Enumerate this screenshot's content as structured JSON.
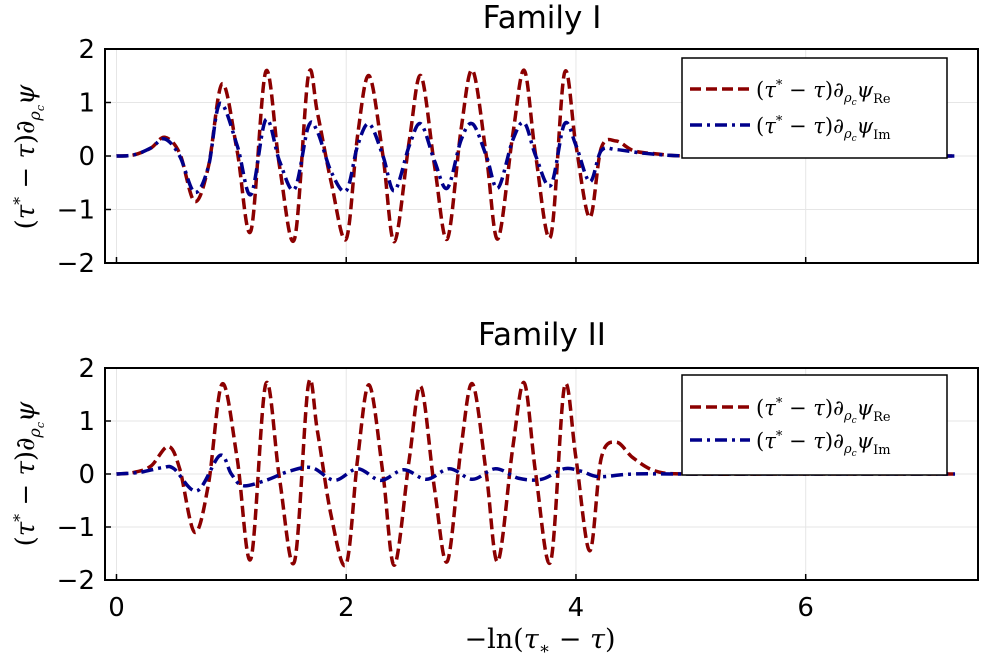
{
  "colors": {
    "re": "#8b0000",
    "im": "#00008b",
    "grid": "#e6e6e6"
  },
  "xlabel": "−ln(τ∗ − τ)",
  "chart_data": [
    {
      "type": "line",
      "title": "Family I",
      "ylabel": "(τ* − τ)∂ρcψ",
      "xlim": [
        -0.1,
        7.5
      ],
      "ylim": [
        -2,
        2
      ],
      "xticks": [
        0,
        2,
        4,
        6
      ],
      "yticks": [
        -2,
        -1,
        0,
        1,
        2
      ],
      "grid": true,
      "legend": "top-right",
      "series": [
        {
          "name": "(τ* − τ)∂ρcψRe",
          "style": "dashed",
          "x": [
            0.0,
            0.15,
            0.3,
            0.42,
            0.55,
            0.68,
            0.8,
            0.92,
            1.05,
            1.17,
            1.3,
            1.42,
            1.55,
            1.67,
            1.75,
            1.87,
            2.0,
            2.1,
            2.2,
            2.32,
            2.42,
            2.55,
            2.65,
            2.77,
            2.88,
            3.0,
            3.1,
            3.22,
            3.32,
            3.45,
            3.55,
            3.65,
            3.78,
            3.9,
            4.0,
            4.12,
            4.22,
            4.35,
            4.5,
            4.7,
            5.0,
            6.0,
            7.3
          ],
          "values": [
            0.0,
            0.02,
            0.15,
            0.35,
            0.05,
            -0.85,
            -0.2,
            1.35,
            0.1,
            -1.4,
            1.58,
            -0.2,
            -1.55,
            1.5,
            0.8,
            -0.5,
            -1.55,
            0.4,
            1.5,
            0.0,
            -1.6,
            0.3,
            1.5,
            -0.2,
            -1.55,
            0.5,
            1.6,
            0.0,
            -1.55,
            0.4,
            1.6,
            0.0,
            -1.5,
            1.55,
            0.2,
            -1.15,
            0.15,
            0.28,
            0.1,
            0.04,
            0.0,
            0.0,
            0.0
          ]
        },
        {
          "name": "(τ* − τ)∂ρcψIm",
          "style": "dashdot",
          "x": [
            0.0,
            0.15,
            0.3,
            0.42,
            0.55,
            0.68,
            0.8,
            0.9,
            1.05,
            1.17,
            1.3,
            1.42,
            1.55,
            1.67,
            1.75,
            1.87,
            2.0,
            2.1,
            2.2,
            2.32,
            2.42,
            2.55,
            2.65,
            2.77,
            2.88,
            3.0,
            3.1,
            3.22,
            3.32,
            3.45,
            3.55,
            3.65,
            3.78,
            3.9,
            4.0,
            4.12,
            4.22,
            4.35,
            4.6,
            5.0,
            6.0,
            7.3
          ],
          "values": [
            0.0,
            0.02,
            0.15,
            0.32,
            0.0,
            -0.68,
            -0.2,
            0.98,
            0.2,
            -0.72,
            0.68,
            -0.1,
            -0.62,
            0.55,
            0.45,
            -0.3,
            -0.65,
            0.2,
            0.6,
            0.0,
            -0.65,
            0.2,
            0.6,
            -0.1,
            -0.6,
            0.3,
            0.6,
            0.0,
            -0.6,
            0.3,
            0.62,
            0.0,
            -0.55,
            0.6,
            0.2,
            -0.48,
            0.1,
            0.12,
            0.05,
            0.0,
            0.0,
            0.0
          ]
        }
      ]
    },
    {
      "type": "line",
      "title": "Family II",
      "ylabel": "(τ* − τ)∂ρcψ",
      "xlim": [
        -0.1,
        7.5
      ],
      "ylim": [
        -2,
        2
      ],
      "xticks": [
        0,
        2,
        4,
        6
      ],
      "yticks": [
        -2,
        -1,
        0,
        1,
        2
      ],
      "grid": true,
      "legend": "top-right",
      "series": [
        {
          "name": "(τ* − τ)∂ρcψRe",
          "style": "dashed",
          "x": [
            0.0,
            0.15,
            0.3,
            0.45,
            0.55,
            0.68,
            0.8,
            0.92,
            1.05,
            1.17,
            1.3,
            1.42,
            1.55,
            1.67,
            1.75,
            1.87,
            2.0,
            2.1,
            2.2,
            2.32,
            2.42,
            2.55,
            2.65,
            2.77,
            2.88,
            3.0,
            3.1,
            3.22,
            3.32,
            3.45,
            3.55,
            3.65,
            3.78,
            3.9,
            4.0,
            4.12,
            4.22,
            4.35,
            4.5,
            4.7,
            5.0,
            6.0,
            7.3
          ],
          "values": [
            0.0,
            0.03,
            0.15,
            0.52,
            0.1,
            -1.1,
            -0.2,
            1.7,
            0.3,
            -1.6,
            1.7,
            -0.1,
            -1.65,
            1.68,
            0.8,
            -0.8,
            -1.7,
            0.3,
            1.68,
            0.0,
            -1.72,
            0.3,
            1.65,
            -0.3,
            -1.65,
            0.5,
            1.7,
            0.0,
            -1.65,
            0.5,
            1.72,
            0.0,
            -1.65,
            1.65,
            0.3,
            -1.45,
            0.3,
            0.6,
            0.3,
            0.05,
            0.0,
            0.0,
            0.0
          ]
        },
        {
          "name": "(τ* − τ)∂ρcψIm",
          "style": "dashdot",
          "x": [
            0.0,
            0.2,
            0.4,
            0.5,
            0.7,
            0.9,
            1.0,
            1.1,
            1.3,
            1.5,
            1.7,
            1.9,
            2.1,
            2.3,
            2.5,
            2.7,
            2.9,
            3.1,
            3.3,
            3.5,
            3.7,
            3.9,
            4.05,
            4.2,
            4.5,
            5.0,
            6.0,
            7.3
          ],
          "values": [
            0.0,
            0.03,
            0.12,
            0.1,
            -0.32,
            0.35,
            0.0,
            -0.22,
            -0.12,
            0.05,
            0.12,
            -0.12,
            0.1,
            -0.12,
            0.08,
            -0.1,
            0.1,
            -0.1,
            0.1,
            -0.08,
            -0.1,
            0.1,
            0.05,
            -0.05,
            0.0,
            0.0,
            0.0,
            0.0
          ]
        }
      ]
    }
  ]
}
